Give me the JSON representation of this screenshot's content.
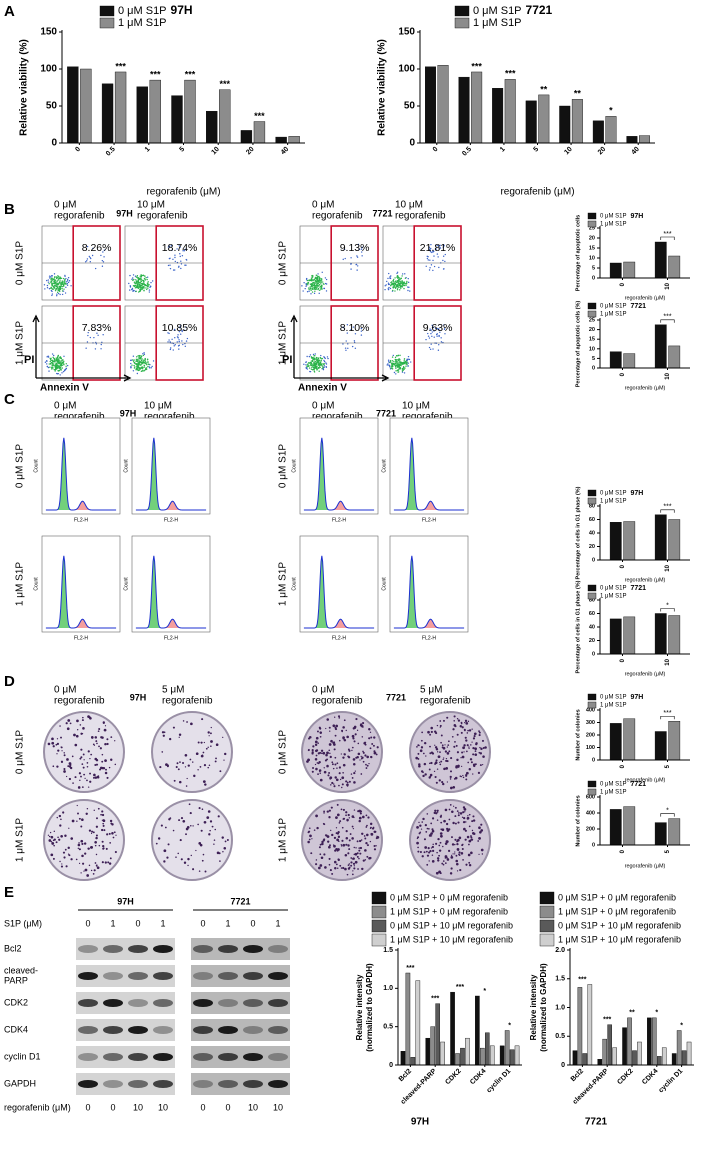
{
  "panel_labels": [
    "A",
    "B",
    "C",
    "D",
    "E"
  ],
  "chart_data": [
    {
      "type": "bar",
      "categories": [
        "0",
        "0.5",
        "1",
        "5",
        "10",
        "20",
        "40"
      ],
      "series": [
        {
          "name": "0 μM S1P",
          "color": "#111111",
          "values": [
            103,
            80,
            76,
            64,
            43,
            17,
            8
          ]
        },
        {
          "name": "1 μM S1P",
          "color": "#8c8c8c",
          "values": [
            100,
            96,
            85,
            85,
            72,
            29,
            9
          ]
        }
      ],
      "ylim": [
        0,
        150
      ],
      "yticks": [
        0,
        50,
        100,
        150
      ],
      "ylabel": "Relative viability (%)",
      "xlabel": "regorafenib (μM)",
      "legend_title": "97H",
      "annotations": [
        null,
        "***",
        "***",
        "***",
        "***",
        "***",
        null
      ]
    },
    {
      "type": "bar",
      "categories": [
        "0",
        "0.5",
        "1",
        "5",
        "10",
        "20",
        "40"
      ],
      "series": [
        {
          "name": "0 μM S1P",
          "color": "#111111",
          "values": [
            103,
            89,
            74,
            57,
            50,
            30,
            9
          ]
        },
        {
          "name": "1 μM S1P",
          "color": "#8c8c8c",
          "values": [
            105,
            96,
            86,
            65,
            59,
            36,
            10
          ]
        }
      ],
      "ylim": [
        0,
        150
      ],
      "yticks": [
        0,
        50,
        100,
        150
      ],
      "ylabel": "Relative viability (%)",
      "xlabel": "regorafenib (μM)",
      "legend_title": "7721",
      "annotations": [
        null,
        "***",
        "***",
        "**",
        "**",
        "*",
        null
      ]
    },
    {
      "type": "bar",
      "categories": [
        "0",
        "10"
      ],
      "series": [
        {
          "name": "0 μM S1P",
          "color": "#111111",
          "values": [
            7.5,
            18
          ]
        },
        {
          "name": "1 μM S1P",
          "color": "#8c8c8c",
          "values": [
            8,
            11
          ]
        }
      ],
      "ylim": [
        0,
        25
      ],
      "yticks": [
        0,
        5,
        10,
        15,
        20,
        25
      ],
      "ylabel": "Percentage of apoptotic cells",
      "xlabel": "regorafenib (μM)",
      "legend_title": "97H",
      "annotations": [
        null,
        "***"
      ]
    },
    {
      "type": "bar",
      "categories": [
        "0",
        "10"
      ],
      "series": [
        {
          "name": "0 μM S1P",
          "color": "#111111",
          "values": [
            8.5,
            22.5
          ]
        },
        {
          "name": "1 μM S1P",
          "color": "#8c8c8c",
          "values": [
            7.5,
            11.5
          ]
        }
      ],
      "ylim": [
        0,
        25
      ],
      "yticks": [
        0,
        5,
        10,
        15,
        20,
        25
      ],
      "ylabel": "Percentage of apoptotic cells (%)",
      "xlabel": "regorafenib (μM)",
      "legend_title": "7721",
      "annotations": [
        null,
        "***"
      ]
    },
    {
      "type": "bar",
      "categories": [
        "0",
        "10"
      ],
      "series": [
        {
          "name": "0 μM S1P",
          "color": "#111111",
          "values": [
            56,
            67
          ]
        },
        {
          "name": "1 μM S1P",
          "color": "#8c8c8c",
          "values": [
            57,
            60
          ]
        }
      ],
      "ylim": [
        0,
        80
      ],
      "yticks": [
        0,
        20,
        40,
        60,
        80
      ],
      "ylabel": "Percentage of cells in G1 phase (%)",
      "xlabel": "regorafenib (μM)",
      "legend_title": "97H",
      "annotations": [
        null,
        "***"
      ]
    },
    {
      "type": "bar",
      "categories": [
        "0",
        "10"
      ],
      "series": [
        {
          "name": "0 μM S1P",
          "color": "#111111",
          "values": [
            52,
            60
          ]
        },
        {
          "name": "1 μM S1P",
          "color": "#8c8c8c",
          "values": [
            55,
            57
          ]
        }
      ],
      "ylim": [
        0,
        80
      ],
      "yticks": [
        0,
        20,
        40,
        60,
        80
      ],
      "ylabel": "Percentage of cells in G1 phase (%)",
      "xlabel": "regorafenib (μM)",
      "legend_title": "7721",
      "annotations": [
        null,
        "*"
      ]
    },
    {
      "type": "bar",
      "categories": [
        "0",
        "5"
      ],
      "series": [
        {
          "name": "0 μM S1P",
          "color": "#111111",
          "values": [
            293,
            228
          ]
        },
        {
          "name": "1 μM S1P",
          "color": "#8c8c8c",
          "values": [
            330,
            310
          ]
        }
      ],
      "ylim": [
        0,
        400
      ],
      "yticks": [
        0,
        100,
        200,
        300,
        400
      ],
      "ylabel": "Number of colonies",
      "xlabel": "regorafenib (μM)",
      "legend_title": "97H",
      "annotations": [
        null,
        "***"
      ]
    },
    {
      "type": "bar",
      "categories": [
        "0",
        "5"
      ],
      "series": [
        {
          "name": "0 μM S1P",
          "color": "#111111",
          "values": [
            445,
            280
          ]
        },
        {
          "name": "1 μM S1P",
          "color": "#8c8c8c",
          "values": [
            480,
            330
          ]
        }
      ],
      "ylim": [
        0,
        600
      ],
      "yticks": [
        0,
        200,
        400,
        600
      ],
      "ylabel": "Number of colonies",
      "xlabel": "regorafenib (μM)",
      "legend_title": "7721",
      "annotations": [
        null,
        "*"
      ]
    },
    {
      "type": "bar",
      "categories": [
        "Bcl2",
        "cleaved-PARP",
        "CDK2",
        "CDK4",
        "cyclin D1"
      ],
      "series": [
        {
          "name": "0 μM S1P + 0 μM regorafenib",
          "color": "#111111",
          "values": [
            0.18,
            0.35,
            0.95,
            0.9,
            0.25
          ]
        },
        {
          "name": "1 μM S1P + 0 μM regorafenib",
          "color": "#8c8c8c",
          "values": [
            1.2,
            0.5,
            0.15,
            0.22,
            0.45
          ]
        },
        {
          "name": "0 μM S1P + 10 μM regorafenib",
          "color": "#5a5a5a",
          "values": [
            0.1,
            0.8,
            0.22,
            0.42,
            0.2
          ]
        },
        {
          "name": "1 μM S1P + 10 μM regorafenib",
          "color": "#cfcfcf",
          "values": [
            1.1,
            0.3,
            0.35,
            0.25,
            0.25
          ]
        }
      ],
      "ylim": [
        0,
        1.5
      ],
      "yticks": [
        0,
        0.5,
        {
          "value": 1,
          "label": "1.0"
        },
        1.5
      ],
      "ylabel": [
        "Relative intensity",
        "(normalized to GAPDH)"
      ],
      "xlabel": "97H",
      "annotations": [
        "***",
        "***",
        "***",
        "*",
        "*"
      ]
    },
    {
      "type": "bar",
      "categories": [
        "Bcl2",
        "cleaved-PARP",
        "CDK2",
        "CDK4",
        "cyclin D1"
      ],
      "series": [
        {
          "name": "0 μM S1P + 0 μM regorafenib",
          "color": "#111111",
          "values": [
            0.25,
            0.1,
            0.65,
            0.82,
            0.2
          ]
        },
        {
          "name": "1 μM S1P + 0 μM regorafenib",
          "color": "#8c8c8c",
          "values": [
            1.35,
            0.45,
            0.82,
            0.82,
            0.6
          ]
        },
        {
          "name": "0 μM S1P + 10 μM regorafenib",
          "color": "#5a5a5a",
          "values": [
            0.2,
            0.7,
            0.25,
            0.15,
            0.25
          ]
        },
        {
          "name": "1 μM S1P + 10 μM regorafenib",
          "color": "#cfcfcf",
          "values": [
            1.4,
            0.3,
            0.4,
            0.3,
            0.4
          ]
        }
      ],
      "ylim": [
        0,
        2
      ],
      "yticks": [
        0,
        0.5,
        {
          "value": 1,
          "label": "1.0"
        },
        1.5,
        {
          "value": 2,
          "label": "2.0"
        }
      ],
      "ylabel": [
        "Relative intensity",
        "(normalized to GAPDH)"
      ],
      "xlabel": "7721",
      "annotations": [
        "***",
        "***",
        "**",
        "*",
        "*"
      ]
    }
  ],
  "flow": {
    "cells": [
      "97H",
      "7721"
    ],
    "col_labels": [
      [
        "0 μM",
        "regorafenib"
      ],
      [
        "10 μM",
        "regorafenib"
      ]
    ],
    "row_labels": [
      "0 μM S1P",
      "1 μM S1P"
    ],
    "y_axis": "PI",
    "x_axis": "Annexin V",
    "percentages": [
      [
        [
          "8.26%",
          "18.74%"
        ],
        [
          "7.83%",
          "10.85%"
        ]
      ],
      [
        [
          "9.13%",
          "21.81%"
        ],
        [
          "8.10%",
          "9.63%"
        ]
      ]
    ]
  },
  "cycle": {
    "cells": [
      "97H",
      "7721"
    ],
    "col_labels": [
      [
        "0 μM",
        "regorafenib"
      ],
      [
        "10 μM",
        "regorafenib"
      ]
    ],
    "row_labels": [
      "0 μM S1P",
      "1 μM S1P"
    ],
    "x_label": "FL2-H",
    "y_label": "Count"
  },
  "colony": {
    "cells": [
      "97H",
      "7721"
    ],
    "col_labels": [
      [
        "0 μM",
        "regorafenib"
      ],
      [
        "5 μM",
        "regorafenib"
      ]
    ],
    "row_labels": [
      "0 μM S1P",
      "1 μM S1P"
    ]
  },
  "blot": {
    "cells": [
      "97H",
      "7721"
    ],
    "s1p_label": "S1P (μM)",
    "s1p": [
      0,
      1,
      0,
      1
    ],
    "proteins": [
      [
        "Bcl2"
      ],
      [
        "cleaved-",
        "PARP"
      ],
      [
        "CDK2"
      ],
      [
        "CDK4"
      ],
      [
        "cyclin D1"
      ],
      [
        "GAPDH"
      ]
    ],
    "rego_label": "regorafenib (μM)",
    "rego": [
      0,
      0,
      10,
      10
    ]
  }
}
